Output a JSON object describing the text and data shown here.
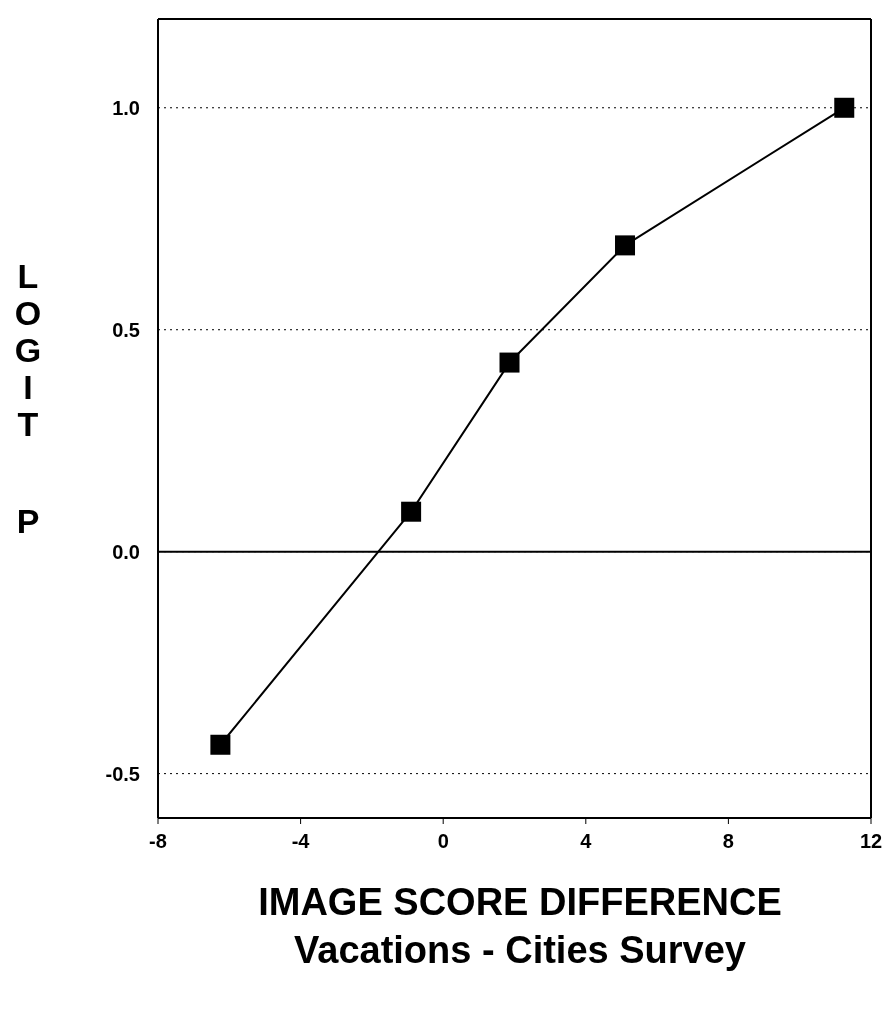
{
  "chart_data": {
    "type": "line",
    "xlabel": "IMAGE SCORE DIFFERENCE\nVacations - Cities Survey",
    "ylabel": "LOGIT P",
    "x": [
      -6.25,
      -0.9,
      1.86,
      5.1,
      11.25
    ],
    "series": [
      {
        "color": "#000000",
        "values": [
          -0.435,
          0.09,
          0.426,
          0.69,
          1.0
        ]
      }
    ],
    "xlim": [
      -8,
      12
    ],
    "xticks": [
      -8,
      -4,
      0,
      4,
      8,
      12
    ],
    "ylim": [
      -0.6,
      1.2
    ],
    "yticks": [
      {
        "value": -0.5,
        "label": "-0.5"
      },
      {
        "value": 0,
        "label": "0.0"
      },
      {
        "value": 0.5,
        "label": "0.5"
      },
      {
        "value": 1,
        "label": "1.0"
      }
    ],
    "grid": "y",
    "marker": "square",
    "line_style": "solid",
    "legend": false,
    "ref_lines": [
      {
        "axis": "y",
        "value": 0,
        "color": "#000000",
        "line_style": "solid"
      }
    ]
  }
}
